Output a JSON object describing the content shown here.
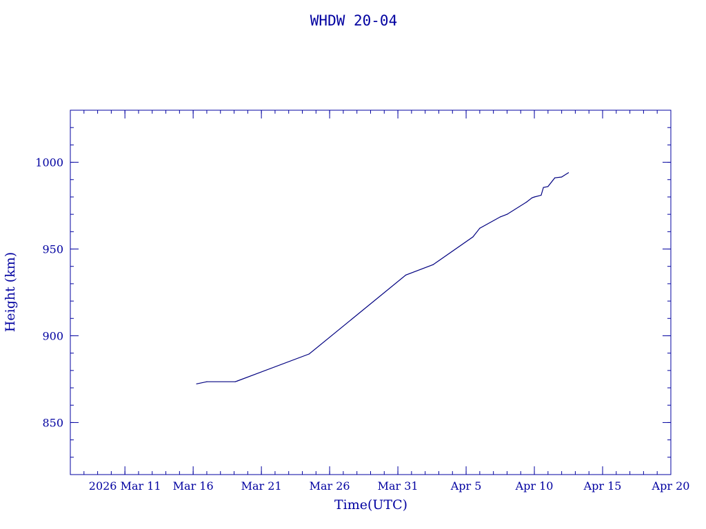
{
  "chart_data": {
    "type": "line",
    "title": "WHDW 20-04",
    "xlabel": "Time(UTC)",
    "ylabel": "Height (km)",
    "x_start": "2026 Mar 11",
    "xlim": [
      "2026-03-07",
      "2026-04-20"
    ],
    "ylim": [
      820,
      1030
    ],
    "x_ticks": [
      {
        "date": "2026-03-11",
        "label": "2026 Mar 11"
      },
      {
        "date": "2026-03-16",
        "label": "Mar 16"
      },
      {
        "date": "2026-03-21",
        "label": "Mar 21"
      },
      {
        "date": "2026-03-26",
        "label": "Mar 26"
      },
      {
        "date": "2026-03-31",
        "label": "Mar 31"
      },
      {
        "date": "2026-04-05",
        "label": "Apr  5"
      },
      {
        "date": "2026-04-10",
        "label": "Apr 10"
      },
      {
        "date": "2026-04-15",
        "label": "Apr 15"
      },
      {
        "date": "2026-04-20",
        "label": "Apr 20"
      }
    ],
    "y_ticks": [
      {
        "value": 850,
        "label": "850"
      },
      {
        "value": 900,
        "label": "900"
      },
      {
        "value": 950,
        "label": "950"
      },
      {
        "value": 1000,
        "label": "1000"
      }
    ],
    "grid": false,
    "legend": "none",
    "series": [
      {
        "color": "#000080",
        "points": [
          {
            "x": "2026-03-16T06:00",
            "y": 872.3
          },
          {
            "x": "2026-03-17T00:00",
            "y": 873.5
          },
          {
            "x": "2026-03-19T02:00",
            "y": 873.5
          },
          {
            "x": "2026-03-19T06:00",
            "y": 874.0
          },
          {
            "x": "2026-03-24T12:00",
            "y": 889.5
          },
          {
            "x": "2026-03-31T14:00",
            "y": 935.0
          },
          {
            "x": "2026-04-02T14:00",
            "y": 941.0
          },
          {
            "x": "2026-04-05T12:00",
            "y": 957.0
          },
          {
            "x": "2026-04-06T00:00",
            "y": 962.0
          },
          {
            "x": "2026-04-07T12:00",
            "y": 968.5
          },
          {
            "x": "2026-04-08T00:00",
            "y": 970.0
          },
          {
            "x": "2026-04-09T10:00",
            "y": 977.0
          },
          {
            "x": "2026-04-09T20:00",
            "y": 979.5
          },
          {
            "x": "2026-04-10T00:00",
            "y": 980.0
          },
          {
            "x": "2026-04-10T12:00",
            "y": 981.0
          },
          {
            "x": "2026-04-10T16:00",
            "y": 985.5
          },
          {
            "x": "2026-04-11T00:00",
            "y": 986.0
          },
          {
            "x": "2026-04-11T12:00",
            "y": 991.0
          },
          {
            "x": "2026-04-12T00:00",
            "y": 991.5
          },
          {
            "x": "2026-04-12T12:00",
            "y": 994.0
          }
        ]
      }
    ]
  }
}
